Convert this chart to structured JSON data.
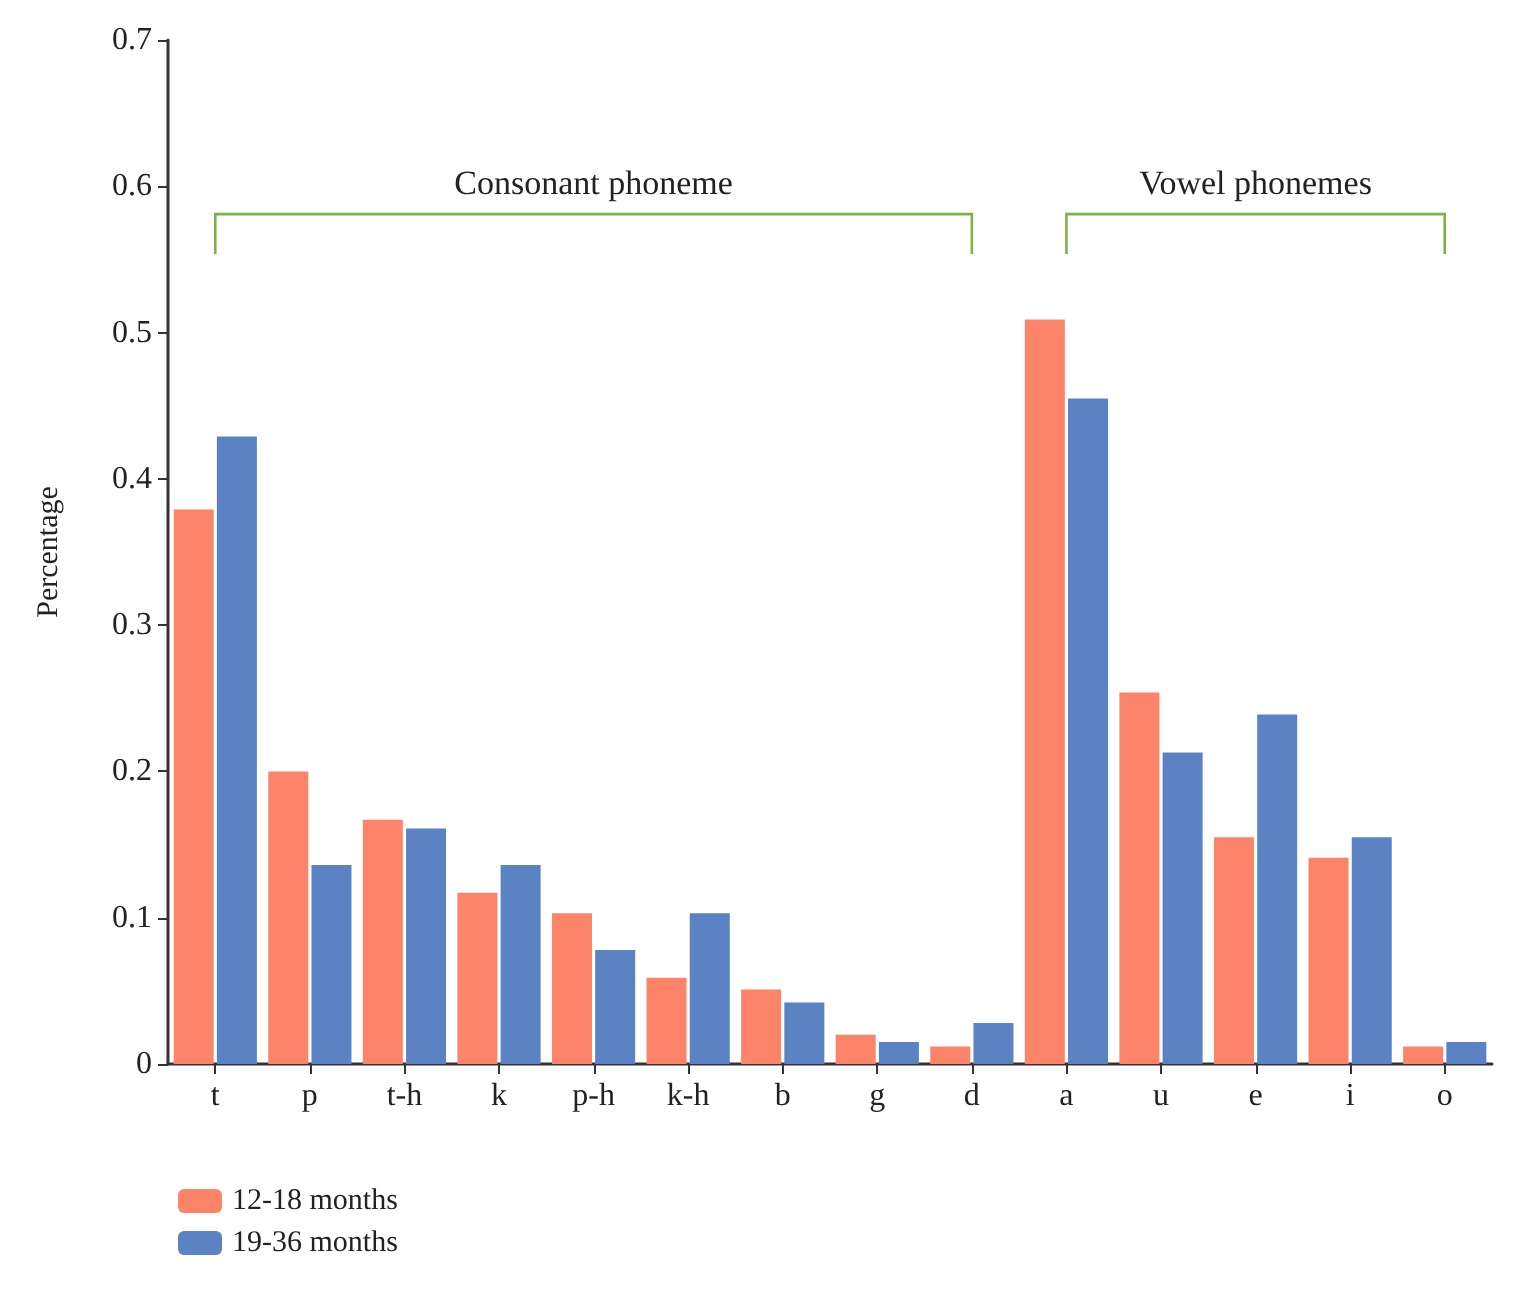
{
  "chart_data": {
    "type": "bar",
    "ylabel": "Percentage",
    "categories": [
      "t",
      "p",
      "t-h",
      "k",
      "p-h",
      "k-h",
      "b",
      "g",
      "d",
      "a",
      "u",
      "e",
      "i",
      "o"
    ],
    "series": [
      {
        "name": "12-18 months",
        "color": "#fd8468",
        "values": [
          0.379,
          0.2,
          0.167,
          0.117,
          0.103,
          0.059,
          0.051,
          0.02,
          0.012,
          0.509,
          0.254,
          0.155,
          0.141,
          0.012
        ]
      },
      {
        "name": "19-36 months",
        "color": "#5b83c3",
        "values": [
          0.429,
          0.136,
          0.161,
          0.136,
          0.078,
          0.103,
          0.042,
          0.015,
          0.028,
          0.455,
          0.213,
          0.239,
          0.155,
          0.015
        ]
      }
    ],
    "ylim": [
      0,
      0.7
    ],
    "yticks": [
      0,
      0.1,
      0.2,
      0.3,
      0.4,
      0.5,
      0.6,
      0.7
    ],
    "grid": false,
    "legend": "bottom left",
    "annotations": [
      "Consonant phoneme",
      "Vowel phonemes"
    ]
  }
}
